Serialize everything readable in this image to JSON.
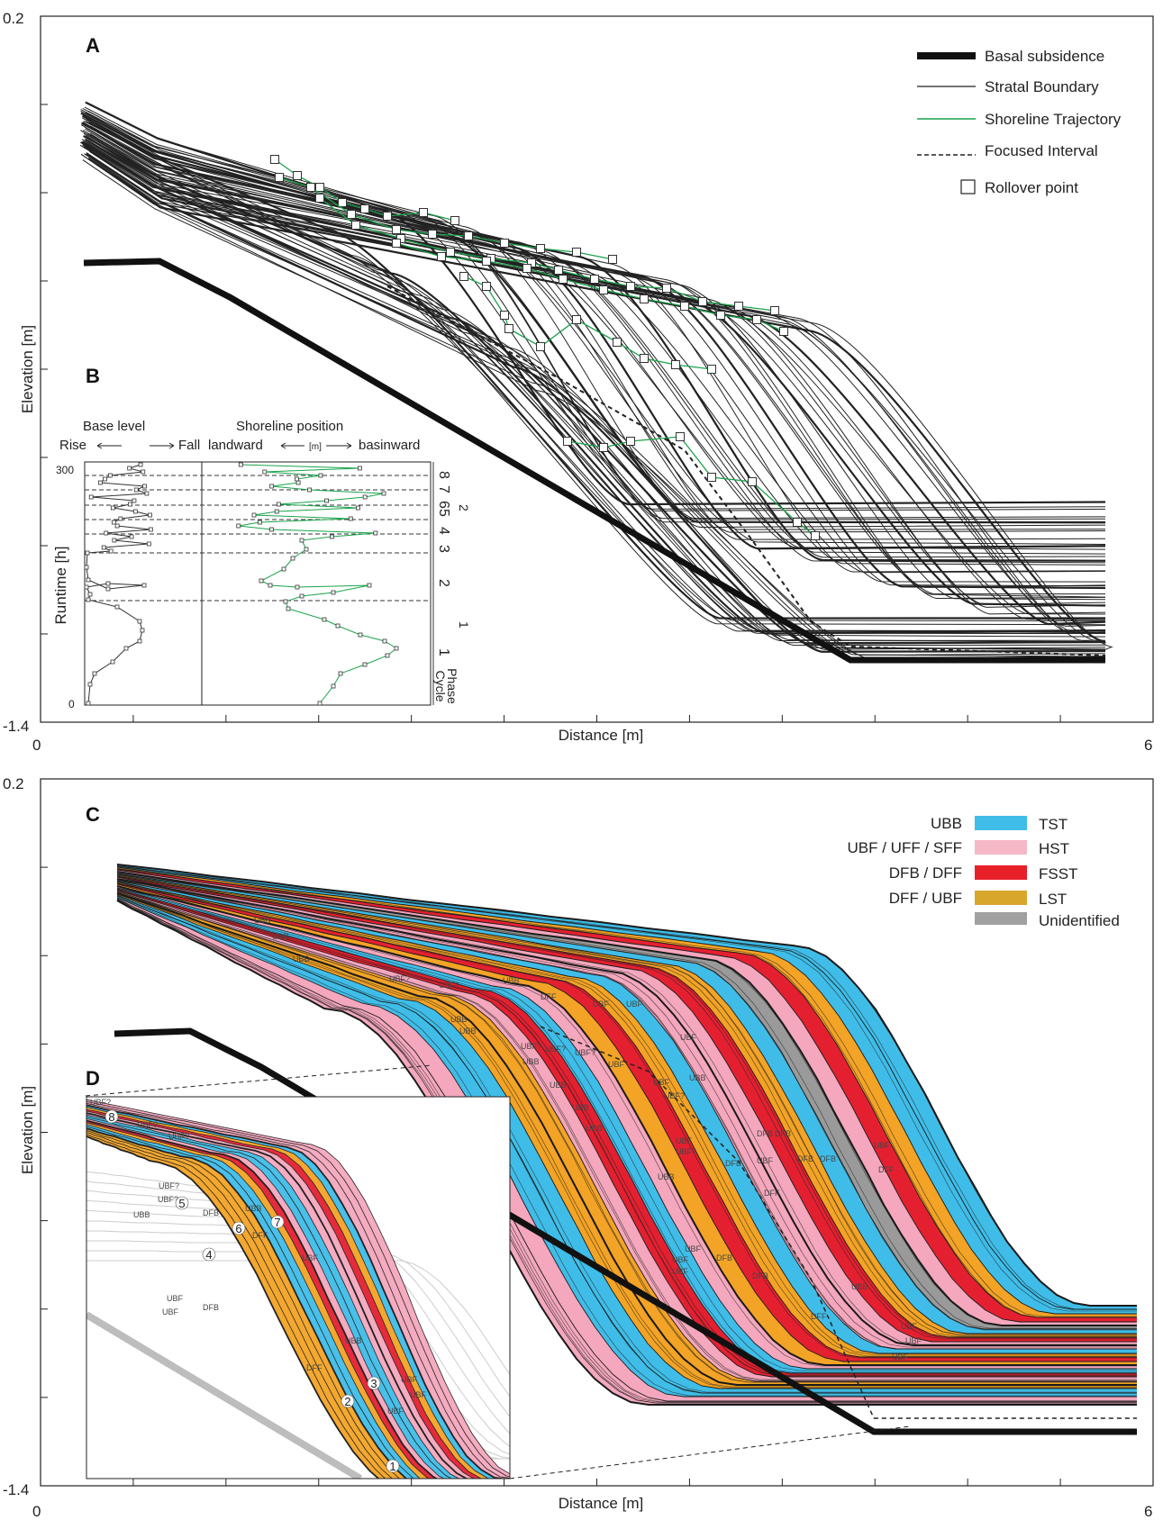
{
  "panelA": {
    "label": "A",
    "y_top_label": "0.2",
    "y_bottom_label": "-1.4",
    "x_left_label": "0",
    "x_right_label": "6",
    "xlabel": "Distance [m]",
    "ylabel": "Elevation [m]",
    "legend": [
      {
        "label": "Basal subsidence",
        "style": "thick"
      },
      {
        "label": "Stratal Boundary",
        "style": "thin"
      },
      {
        "label": "Shoreline Trajectory",
        "style": "green"
      },
      {
        "label": "Focused Interval",
        "style": "dashed"
      },
      {
        "label": "Rollover point",
        "style": "square"
      }
    ]
  },
  "panelB": {
    "label": "B",
    "base_level_title": "Base level",
    "rise": "Rise",
    "fall": "Fall",
    "shoreline_title": "Shoreline position",
    "landward": "landward",
    "basinward": "basinward",
    "unit": "[m]",
    "ylabel": "Runtime [h]",
    "y_top": "300",
    "y_bottom": "0",
    "phase_label": "Phase",
    "cycle_label": "Cycle",
    "phases": [
      "8",
      "7",
      "6",
      "5",
      "4",
      "3",
      "2",
      "1"
    ],
    "cycles": [
      "2",
      "1"
    ]
  },
  "panelC": {
    "label": "C",
    "y_top_label": "0.2",
    "y_bottom_label": "-1.4",
    "x_left_label": "0",
    "x_right_label": "6",
    "xlabel": "Distance [m]",
    "ylabel": "Elevation [m]",
    "legend": [
      {
        "facies": "UBB",
        "tract": "TST",
        "color": "#3fbde8"
      },
      {
        "facies": "UBF / UFF / SFF",
        "tract": "HST",
        "color": "#f6b7c6"
      },
      {
        "facies": "DFB / DFF",
        "tract": "FSST",
        "color": "#e8202a"
      },
      {
        "facies": "DFF / UBF",
        "tract": "LST",
        "color": "#d9a62c"
      },
      {
        "facies": "",
        "tract": "Unidentified",
        "color": "#a0a0a0"
      }
    ]
  },
  "panelD": {
    "label": "D",
    "numbers": [
      "1",
      "2",
      "3",
      "4",
      "5",
      "6",
      "7",
      "8"
    ]
  },
  "facies_labels": [
    "UBB",
    "UBF",
    "UBF?",
    "DFF",
    "DFB",
    "UFF",
    "SFF"
  ],
  "colors": {
    "tst": "#3fbde8",
    "hst": "#f4a7bd",
    "fsst": "#e42030",
    "lst": "#f3a325",
    "grey": "#9a9a9a",
    "green": "#1aa34a"
  }
}
